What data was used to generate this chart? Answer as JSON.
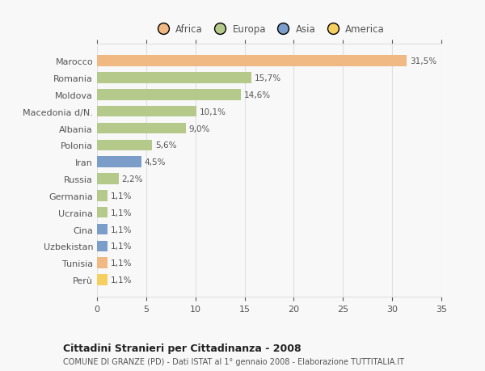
{
  "categories": [
    "Marocco",
    "Romania",
    "Moldova",
    "Macedonia d/N.",
    "Albania",
    "Polonia",
    "Iran",
    "Russia",
    "Germania",
    "Ucraina",
    "Cina",
    "Uzbekistan",
    "Tunisia",
    "Perù"
  ],
  "values": [
    31.5,
    15.7,
    14.6,
    10.1,
    9.0,
    5.6,
    4.5,
    2.2,
    1.1,
    1.1,
    1.1,
    1.1,
    1.1,
    1.1
  ],
  "labels": [
    "31,5%",
    "15,7%",
    "14,6%",
    "10,1%",
    "9,0%",
    "5,6%",
    "4,5%",
    "2,2%",
    "1,1%",
    "1,1%",
    "1,1%",
    "1,1%",
    "1,1%",
    "1,1%"
  ],
  "colors": [
    "#F0B882",
    "#B5C98A",
    "#B5C98A",
    "#B5C98A",
    "#B5C98A",
    "#B5C98A",
    "#7B9DC9",
    "#B5C98A",
    "#B5C98A",
    "#B5C98A",
    "#7B9DC9",
    "#7B9DC9",
    "#F0B882",
    "#F5D060"
  ],
  "legend_labels": [
    "Africa",
    "Europa",
    "Asia",
    "America"
  ],
  "legend_colors": [
    "#F0B882",
    "#B5C98A",
    "#7B9DC9",
    "#F5D060"
  ],
  "title": "Cittadini Stranieri per Cittadinanza - 2008",
  "subtitle": "COMUNE DI GRANZE (PD) - Dati ISTAT al 1° gennaio 2008 - Elaborazione TUTTITALIA.IT",
  "xlim": [
    0,
    35
  ],
  "xticks": [
    0,
    5,
    10,
    15,
    20,
    25,
    30,
    35
  ],
  "background_color": "#f8f8f8",
  "grid_color": "#e0e0e0"
}
